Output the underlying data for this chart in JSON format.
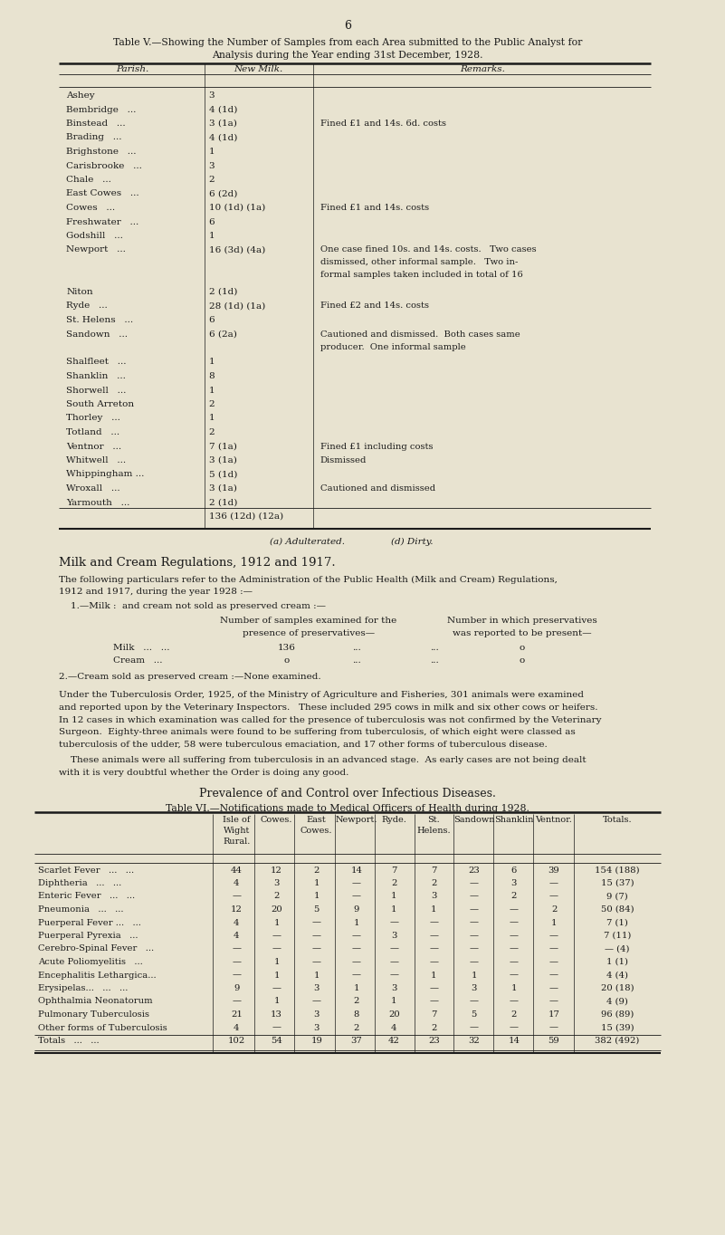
{
  "page_number": "6",
  "bg_color": "#e8e3d0",
  "title1": "Table V.—Showing the Number of Samples from each Area submitted to the Public Analyst for",
  "title2": "Analysis during the Year ending 31st December, 1928.",
  "table5_col_headers": [
    "Parish.",
    "New Milk.",
    "Remarks."
  ],
  "table5_rows": [
    [
      "Ashey",
      "3",
      ""
    ],
    [
      "Bembridge   ...",
      "4 (1d)",
      ""
    ],
    [
      "Binstead   ...",
      "3 (1a)",
      "Fined £1 and 14s. 6d. costs"
    ],
    [
      "Brading   ...",
      "4 (1d)",
      ""
    ],
    [
      "Brighstone   ...",
      "1",
      ""
    ],
    [
      "Carisbrooke   ...",
      "3",
      ""
    ],
    [
      "Chale   ...",
      "2",
      ""
    ],
    [
      "East Cowes   ...",
      "6 (2d)",
      ""
    ],
    [
      "Cowes   ...",
      "10 (1d) (1a)",
      "Fined £1 and 14s. costs"
    ],
    [
      "Freshwater   ...",
      "6",
      ""
    ],
    [
      "Godshill   ...",
      "1",
      ""
    ],
    [
      "Newport   ...",
      "16 (3d) (4a)",
      "One case fined 10s. and 14s. costs.   Two cases\ndismissed, other informal sample.   Two in-\nformal samples taken included in total of 16"
    ],
    [
      "Niton",
      "2 (1d)",
      ""
    ],
    [
      "Ryde   ...",
      "28 (1d) (1a)",
      "Fined £2 and 14s. costs"
    ],
    [
      "St. Helens   ...",
      "6",
      ""
    ],
    [
      "Sandown   ...",
      "6 (2a)",
      "Cautioned and dismissed.  Both cases same\nproducer.  One informal sample"
    ],
    [
      "Shalfleet   ...",
      "1",
      ""
    ],
    [
      "Shanklin   ...",
      "8",
      ""
    ],
    [
      "Shorwell   ...",
      "1",
      ""
    ],
    [
      "South Arreton",
      "2",
      ""
    ],
    [
      "Thorley   ...",
      "1",
      ""
    ],
    [
      "Totland   ...",
      "2",
      ""
    ],
    [
      "Ventnor   ...",
      "7 (1a)",
      "Fined £1 including costs"
    ],
    [
      "Whitwell   ...",
      "3 (1a)",
      "Dismissed"
    ],
    [
      "Whippingham ...",
      "5 (1d)",
      ""
    ],
    [
      "Wroxall   ...",
      "3 (1a)",
      "Cautioned and dismissed"
    ],
    [
      "Yarmouth   ...",
      "2 (1d)",
      ""
    ],
    [
      "",
      "136 (12d) (12a)",
      ""
    ]
  ],
  "footnote_left": "(a) Adulterated.",
  "footnote_right": "(d) Dirty.",
  "milk_cream_heading": "Milk and Cream Regulations, 1912 and 1917.",
  "milk_cream_para1a": "The following particulars refer to the Administration of the Public Health (Milk and Cream) Regulations,",
  "milk_cream_para1b": "1912 and 1917, during the year 1928 :—",
  "milk_cream_para2": "    1.—Milk :  and cream not sold as preserved cream :—",
  "milk_cream_col1a": "Number of samples examined for the",
  "milk_cream_col1b": "presence of preservatives—",
  "milk_cream_col2a": "Number in which preservatives",
  "milk_cream_col2b": "was reported to be present—",
  "milk_row_label": "Milk   ...   ...",
  "milk_row_val1": "136",
  "milk_row_dots1": "...",
  "milk_row_dots2": "...",
  "milk_row_val2": "o",
  "cream_row_label": "Cream   ...",
  "cream_row_val1": "o",
  "cream_row_dots1": "...",
  "cream_row_dots2": "...",
  "cream_row_val2": "o",
  "milk_cream_para3": "2.—Cream sold as preserved cream :—None examined.",
  "tb_para1a": "Under the Tuberculosis Order, 1925, of the Ministry of Agriculture and Fisheries, 301 animals were examined",
  "tb_para1b": "and reported upon by the Veterinary Inspectors.   These included 295 cows in milk and six other cows or heifers.",
  "tb_para1c": "In 12 cases in which examination was called for the presence of tuberculosis was not confirmed by the Veterinary",
  "tb_para1d": "Surgeon.  Eighty-three animals were found to be suffering from tuberculosis, of which eight were classed as",
  "tb_para1e": "tuberculosis of the udder, 58 were tuberculous emaciation, and 17 other forms of tuberculous disease.",
  "tb_para2a": "    These animals were all suffering from tuberculosis in an advanced stage.  As early cases are not being dealt",
  "tb_para2b": "with it is very doubtful whether the Order is doing any good.",
  "prev_heading": "Prevalence of and Control over Infectious Diseases.",
  "table6_title": "Table VI.—Notifications made to Medical Officers of Health during 1928.",
  "table6_col_headers": [
    "",
    "Isle of\nWight\nRural.",
    "Cowes.",
    "East\nCowes.",
    "Newport.",
    "Ryde.",
    "St.\nHelens.",
    "Sandown",
    "Shanklin",
    "Ventnor.",
    "Totals."
  ],
  "table6_rows": [
    [
      "Scarlet Fever   ...   ...",
      "44",
      "12",
      "2",
      "14",
      "7",
      "7",
      "23",
      "6",
      "39",
      "154 (188)"
    ],
    [
      "Diphtheria   ...   ...",
      "4",
      "3",
      "1",
      "—",
      "2",
      "2",
      "—",
      "3",
      "—",
      "15 (37)"
    ],
    [
      "Enteric Fever   ...   ...",
      "—",
      "2",
      "1",
      "—",
      "1",
      "3",
      "—",
      "2",
      "—",
      "9 (7)"
    ],
    [
      "Pneumonia   ...   ...",
      "12",
      "20",
      "5",
      "9",
      "1",
      "1",
      "—",
      "—",
      "2",
      "50 (84)"
    ],
    [
      "Puerperal Fever ...   ...",
      "4",
      "1",
      "—",
      "1",
      "—",
      "—",
      "—",
      "—",
      "1",
      "7 (1)"
    ],
    [
      "Puerperal Pyrexia   ...",
      "4",
      "—",
      "—",
      "—",
      "3",
      "—",
      "—",
      "—",
      "—",
      "7 (11)"
    ],
    [
      "Cerebro-Spinal Fever   ...",
      "—",
      "—",
      "—",
      "—",
      "—",
      "—",
      "—",
      "—",
      "—",
      "— (4)"
    ],
    [
      "Acute Poliomyelitis   ...",
      "—",
      "1",
      "—",
      "—",
      "—",
      "—",
      "—",
      "—",
      "—",
      "1 (1)"
    ],
    [
      "Encephalitis Lethargica...",
      "—",
      "1",
      "1",
      "—",
      "—",
      "1",
      "1",
      "—",
      "—",
      "4 (4)"
    ],
    [
      "Erysipelas...   ...   ...",
      "9",
      "—",
      "3",
      "1",
      "3",
      "—",
      "3",
      "1",
      "—",
      "20 (18)"
    ],
    [
      "Ophthalmia Neonatorum",
      "—",
      "1",
      "—",
      "2",
      "1",
      "—",
      "—",
      "—",
      "—",
      "4 (9)"
    ],
    [
      "Pulmonary Tuberculosis",
      "21",
      "13",
      "3",
      "8",
      "20",
      "7",
      "5",
      "2",
      "17",
      "96 (89)"
    ],
    [
      "Other forms of Tuberculosis",
      "4",
      "—",
      "3",
      "2",
      "4",
      "2",
      "—",
      "—",
      "—",
      "15 (39)"
    ],
    [
      "Totals   ...   ...",
      "102",
      "54",
      "19",
      "37",
      "42",
      "23",
      "32",
      "14",
      "59",
      "382 (492)"
    ]
  ]
}
